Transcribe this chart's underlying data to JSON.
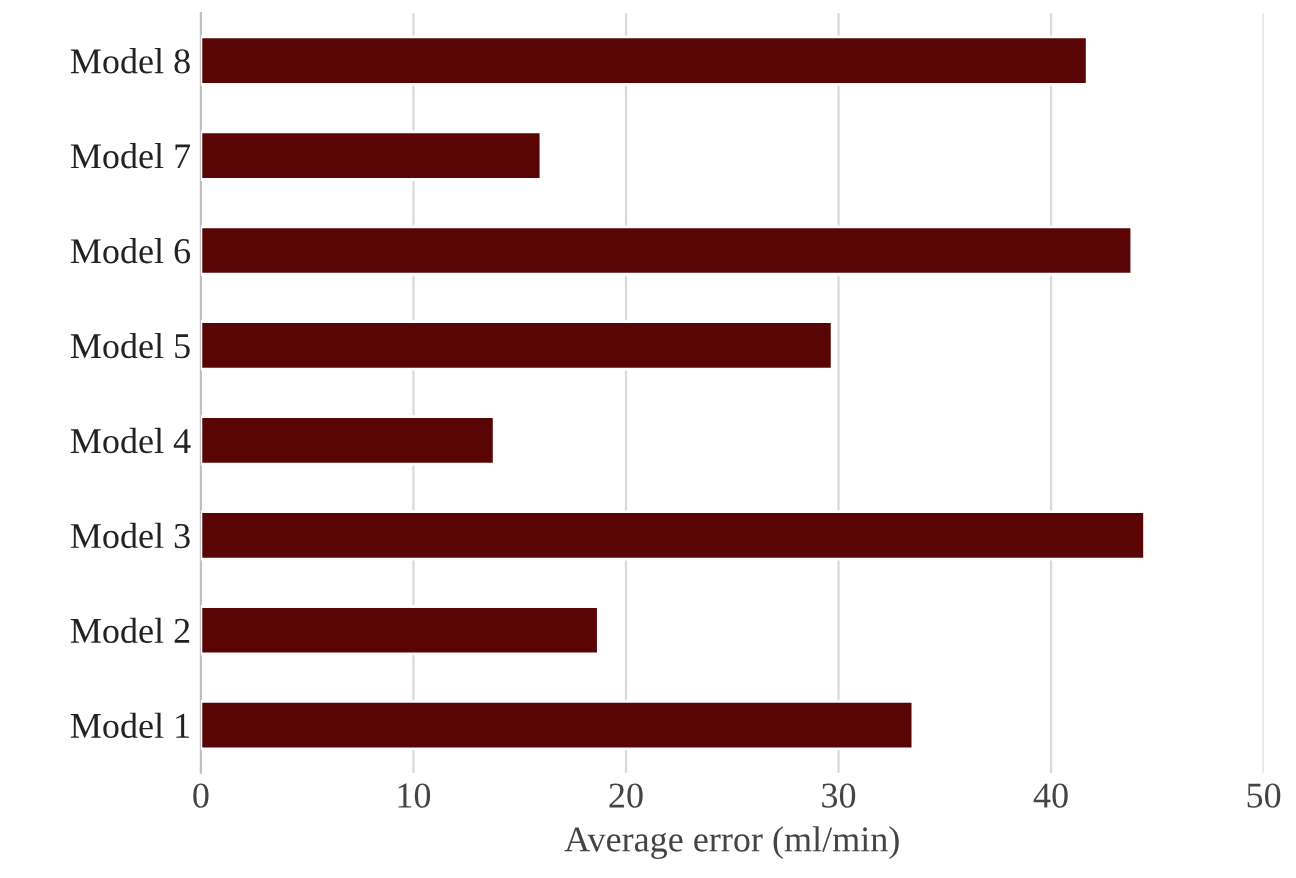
{
  "chart_data": {
    "type": "bar",
    "orientation": "horizontal",
    "xlabel": "Average error (ml/min)",
    "categories": [
      "Model 8",
      "Model 7",
      "Model 6",
      "Model 5",
      "Model 4",
      "Model 3",
      "Model 2",
      "Model 1"
    ],
    "values": [
      41.7,
      16.0,
      43.8,
      29.7,
      13.8,
      44.4,
      18.7,
      33.5
    ],
    "color": "#5a0505",
    "xlim": [
      0,
      50
    ],
    "xticks": [
      0,
      10,
      20,
      30,
      40,
      50
    ],
    "grid": "x",
    "legend": false
  }
}
